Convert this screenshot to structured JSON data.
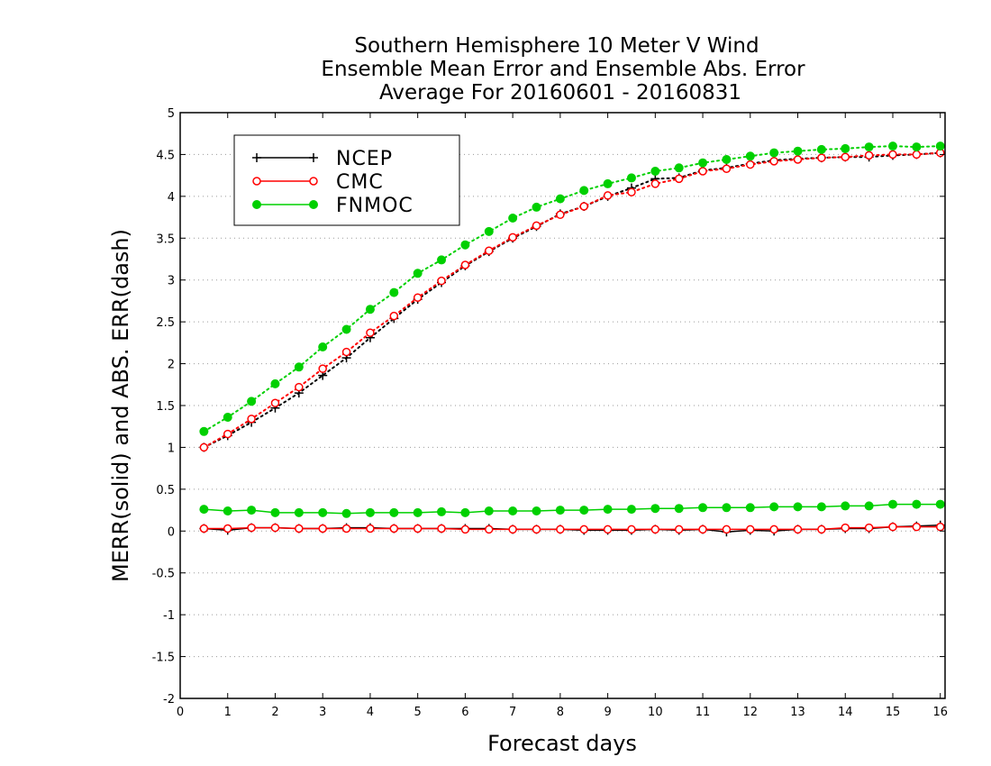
{
  "chart_data": {
    "type": "line",
    "title_lines": [
      "Southern Hemisphere 10 Meter V Wind",
      "Ensemble Mean Error and Ensemble Abs. Error",
      "Average For 20160601 - 20160831"
    ],
    "xlabel": "Forecast days",
    "ylabel": "MERR(solid) and ABS. ERR(dash)",
    "xlim": [
      0,
      16.1
    ],
    "ylim": [
      -2,
      5
    ],
    "x_ticks": [
      "0",
      "1",
      "2",
      "3",
      "4",
      "5",
      "6",
      "7",
      "8",
      "9",
      "10",
      "11",
      "12",
      "13",
      "14",
      "15",
      "16"
    ],
    "y_ticks": [
      "-2",
      "-1.5",
      "-1",
      "-0.5",
      "0",
      "0.5",
      "1",
      "1.5",
      "2",
      "2.5",
      "3",
      "3.5",
      "4",
      "4.5",
      "5"
    ],
    "grid": "horizontal dotted",
    "legend_position": "top-left",
    "x": [
      0.5,
      1,
      1.5,
      2,
      2.5,
      3,
      3.5,
      4,
      4.5,
      5,
      5.5,
      6,
      6.5,
      7,
      7.5,
      8,
      8.5,
      9,
      9.5,
      10,
      10.5,
      11,
      11.5,
      12,
      12.5,
      13,
      13.5,
      14,
      14.5,
      15,
      15.5,
      16
    ],
    "series": [
      {
        "name": "NCEP",
        "color": "#000000",
        "marker": "plus",
        "merr": [
          0.03,
          0.01,
          0.04,
          0.04,
          0.03,
          0.03,
          0.04,
          0.04,
          0.03,
          0.03,
          0.03,
          0.03,
          0.03,
          0.02,
          0.02,
          0.02,
          0.01,
          0.01,
          0.01,
          0.02,
          0.01,
          0.02,
          -0.01,
          0.01,
          0.0,
          0.02,
          0.02,
          0.03,
          0.03,
          0.05,
          0.06,
          0.07
        ],
        "abs_err": [
          1.0,
          1.14,
          1.3,
          1.47,
          1.65,
          1.86,
          2.07,
          2.31,
          2.54,
          2.77,
          2.97,
          3.17,
          3.34,
          3.5,
          3.64,
          3.79,
          3.88,
          4.0,
          4.1,
          4.21,
          4.22,
          4.31,
          4.34,
          4.39,
          4.43,
          4.45,
          4.46,
          4.47,
          4.47,
          4.49,
          4.5,
          4.52
        ]
      },
      {
        "name": "CMC",
        "color": "#ff0000",
        "marker": "open-circle",
        "merr": [
          0.03,
          0.03,
          0.04,
          0.04,
          0.03,
          0.03,
          0.03,
          0.03,
          0.03,
          0.03,
          0.03,
          0.02,
          0.02,
          0.02,
          0.02,
          0.02,
          0.02,
          0.02,
          0.02,
          0.02,
          0.02,
          0.02,
          0.02,
          0.02,
          0.02,
          0.02,
          0.02,
          0.04,
          0.04,
          0.05,
          0.05,
          0.05
        ],
        "abs_err": [
          1.0,
          1.16,
          1.34,
          1.53,
          1.72,
          1.94,
          2.14,
          2.37,
          2.57,
          2.79,
          2.99,
          3.18,
          3.35,
          3.51,
          3.65,
          3.78,
          3.88,
          4.01,
          4.05,
          4.15,
          4.21,
          4.3,
          4.33,
          4.38,
          4.42,
          4.44,
          4.46,
          4.47,
          4.49,
          4.5,
          4.5,
          4.52
        ]
      },
      {
        "name": "FNMOC",
        "color": "#00d000",
        "marker": "filled-circle",
        "merr": [
          0.26,
          0.24,
          0.25,
          0.22,
          0.22,
          0.22,
          0.21,
          0.22,
          0.22,
          0.22,
          0.23,
          0.22,
          0.24,
          0.24,
          0.24,
          0.25,
          0.25,
          0.26,
          0.26,
          0.27,
          0.27,
          0.28,
          0.28,
          0.28,
          0.29,
          0.29,
          0.29,
          0.3,
          0.3,
          0.32,
          0.32,
          0.32
        ],
        "abs_err": [
          1.19,
          1.36,
          1.55,
          1.76,
          1.96,
          2.2,
          2.41,
          2.65,
          2.85,
          3.08,
          3.24,
          3.42,
          3.58,
          3.74,
          3.87,
          3.97,
          4.07,
          4.15,
          4.22,
          4.3,
          4.34,
          4.4,
          4.44,
          4.48,
          4.52,
          4.54,
          4.56,
          4.57,
          4.59,
          4.6,
          4.59,
          4.6
        ]
      }
    ]
  }
}
